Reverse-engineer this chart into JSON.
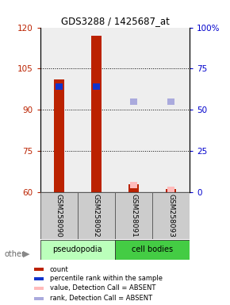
{
  "title": "GDS3288 / 1425687_at",
  "ylim_left": [
    60,
    120
  ],
  "ylim_right": [
    0,
    100
  ],
  "yticks_left": [
    60,
    75,
    90,
    105,
    120
  ],
  "yticks_right": [
    0,
    25,
    50,
    75,
    100
  ],
  "ytick_labels_right": [
    "0",
    "25",
    "50",
    "75",
    "100%"
  ],
  "samples": [
    "GSM258090",
    "GSM258092",
    "GSM258091",
    "GSM258093"
  ],
  "groups": [
    {
      "label": "pseudopodia",
      "color": "#bbffbb",
      "samples": [
        0,
        1
      ]
    },
    {
      "label": "cell bodies",
      "color": "#44cc44",
      "samples": [
        2,
        3
      ]
    }
  ],
  "bars": [
    {
      "x": 0,
      "value": 101,
      "color": "#bb2200"
    },
    {
      "x": 1,
      "value": 117,
      "color": "#bb2200"
    },
    {
      "x": 2,
      "value": 63,
      "color": "#bb2200"
    },
    {
      "x": 3,
      "value": 61,
      "color": "#bb2200"
    }
  ],
  "squares_blue": [
    {
      "x": 0,
      "value": 98.5,
      "color": "#1133cc"
    },
    {
      "x": 1,
      "value": 98.5,
      "color": "#1133cc"
    }
  ],
  "squares_lightblue": [
    {
      "x": 2,
      "value": 93,
      "color": "#aaaadd"
    },
    {
      "x": 3,
      "value": 93,
      "color": "#aaaadd"
    }
  ],
  "squares_pink": [
    {
      "x": 2,
      "value": 62.5,
      "color": "#ffbbbb"
    },
    {
      "x": 3,
      "value": 61.0,
      "color": "#ffbbbb"
    }
  ],
  "bg_color": "#ffffff",
  "plot_bg": "#eeeeee",
  "legend_items": [
    {
      "color": "#bb2200",
      "label": "count"
    },
    {
      "color": "#1133cc",
      "label": "percentile rank within the sample"
    },
    {
      "color": "#ffbbbb",
      "label": "value, Detection Call = ABSENT"
    },
    {
      "color": "#aaaadd",
      "label": "rank, Detection Call = ABSENT"
    }
  ]
}
